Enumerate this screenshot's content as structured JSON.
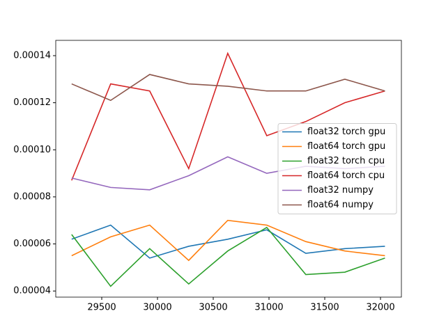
{
  "chart_data": {
    "type": "line",
    "x": [
      29230,
      29580,
      29930,
      30280,
      30630,
      30980,
      31330,
      31680,
      32040
    ],
    "series": [
      {
        "name": "float32 torch gpu",
        "color": "#1f77b4",
        "values": [
          6.2e-05,
          6.8e-05,
          5.4e-05,
          5.9e-05,
          6.2e-05,
          6.6e-05,
          5.6e-05,
          5.8e-05,
          5.9e-05
        ]
      },
      {
        "name": "float64 torch gpu",
        "color": "#ff7f0e",
        "values": [
          5.5e-05,
          6.3e-05,
          6.8e-05,
          5.3e-05,
          7e-05,
          6.8e-05,
          6.1e-05,
          5.7e-05,
          5.5e-05
        ]
      },
      {
        "name": "float32 torch cpu",
        "color": "#2ca02c",
        "values": [
          6.4e-05,
          4.2e-05,
          5.8e-05,
          4.3e-05,
          5.7e-05,
          6.7e-05,
          4.7e-05,
          4.8e-05,
          5.4e-05
        ]
      },
      {
        "name": "float64 torch cpu",
        "color": "#d62728",
        "values": [
          8.7e-05,
          0.000128,
          0.000125,
          9.2e-05,
          0.000141,
          0.000106,
          0.000112,
          0.00012,
          0.000125
        ]
      },
      {
        "name": "float32 numpy",
        "color": "#9467bd",
        "values": [
          8.8e-05,
          8.4e-05,
          8.3e-05,
          8.9e-05,
          9.7e-05,
          9e-05,
          9.3e-05,
          9.2e-05,
          9.3e-05
        ]
      },
      {
        "name": "float64 numpy",
        "color": "#8c564b",
        "values": [
          0.000128,
          0.000121,
          0.000132,
          0.000128,
          0.000127,
          0.000125,
          0.000125,
          0.00013,
          0.000125
        ]
      }
    ],
    "xlim": [
      29087.5,
      32187.5
    ],
    "xticks": [
      29500,
      30000,
      30500,
      31000,
      31500,
      32000
    ],
    "ylim": [
      3.74e-05,
      0.0001465
    ],
    "yticks": [
      {
        "value": 4e-05,
        "label": "0.00004"
      },
      {
        "value": 6e-05,
        "label": "0.00006"
      },
      {
        "value": 8e-05,
        "label": "0.00008"
      },
      {
        "value": 0.0001,
        "label": "0.00010"
      },
      {
        "value": 0.00012,
        "label": "0.00012"
      },
      {
        "value": 0.00014,
        "label": "0.00014"
      }
    ],
    "legend": "center right"
  }
}
